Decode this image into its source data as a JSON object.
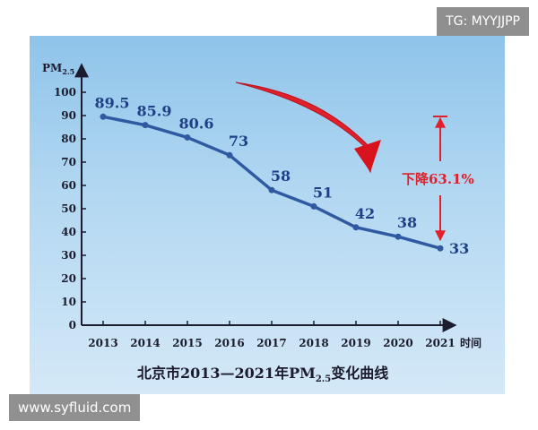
{
  "watermarks": {
    "top_right": "TG: MYYJJPP",
    "bottom_left": "www.syfluid.com"
  },
  "colors": {
    "line": "#2f5aa2",
    "value_label": "#1f3f86",
    "annotation": "#e0212b",
    "axis": "#1c1c2e"
  },
  "chart_data": {
    "type": "line",
    "title": "北京市2013—2021年PM2.5变化曲线",
    "ylabel": "PM2.5",
    "xlabel": "时间",
    "ylim": [
      0,
      100
    ],
    "yticks": [
      0,
      10,
      20,
      30,
      40,
      50,
      60,
      70,
      80,
      90,
      100
    ],
    "categories": [
      "2013",
      "2014",
      "2015",
      "2016",
      "2017",
      "2018",
      "2019",
      "2020",
      "2021"
    ],
    "values": [
      89.5,
      85.9,
      80.6,
      73,
      58,
      51,
      42,
      38,
      33
    ],
    "value_labels": [
      "89.5",
      "85.9",
      "80.6",
      "73",
      "58",
      "51",
      "42",
      "38",
      "33"
    ],
    "annotation": "下降63.1%",
    "grid": false,
    "legend": "none"
  }
}
